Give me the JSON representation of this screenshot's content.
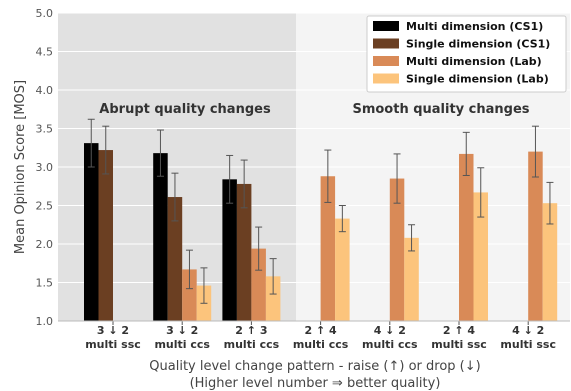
{
  "chart_data": {
    "type": "bar",
    "title": "",
    "ylabel": "Mean Opinion Score [MOS]",
    "xlabel_line1": "Quality level change pattern - raise (↑) or drop (↓)",
    "xlabel_line2": "(Higher level number ⇒ better quality)",
    "ylim": [
      1.0,
      5.0
    ],
    "yticks": [
      "1.0",
      "1.5",
      "2.0",
      "2.5",
      "3.0",
      "3.5",
      "4.0",
      "4.5",
      "5.0"
    ],
    "grid": true,
    "legend_position": "top-right",
    "categories": [
      {
        "line1": "3 ↓ 2",
        "line2": "multi ssc"
      },
      {
        "line1": "3 ↓ 2",
        "line2": "multi ccs"
      },
      {
        "line1": "2 ↑ 3",
        "line2": "multi ccs"
      },
      {
        "line1": "2 ↑ 4",
        "line2": "multi ccs"
      },
      {
        "line1": "4 ↓ 2",
        "line2": "multi ccs"
      },
      {
        "line1": "2 ↑ 4",
        "line2": "multi ssc"
      },
      {
        "line1": "4 ↓ 2",
        "line2": "multi ssc"
      }
    ],
    "series": [
      {
        "name": "Multi dimension (CS1)",
        "color": "#000000",
        "values": [
          3.31,
          3.18,
          2.84,
          null,
          null,
          null,
          null
        ],
        "err": [
          0.31,
          0.3,
          0.31,
          null,
          null,
          null,
          null
        ]
      },
      {
        "name": "Single dimension (CS1)",
        "color": "#6b3f22",
        "values": [
          3.22,
          2.61,
          2.78,
          null,
          null,
          null,
          null
        ],
        "err": [
          0.31,
          0.31,
          0.31,
          null,
          null,
          null,
          null
        ]
      },
      {
        "name": "Multi dimension (Lab)",
        "color": "#d98a57",
        "values": [
          null,
          1.67,
          1.94,
          2.88,
          2.85,
          3.17,
          3.2
        ],
        "err": [
          null,
          0.25,
          0.28,
          0.34,
          0.32,
          0.28,
          0.33
        ]
      },
      {
        "name": "Single dimension (Lab)",
        "color": "#fcc47c",
        "values": [
          null,
          1.46,
          1.58,
          2.33,
          2.08,
          2.67,
          2.53
        ],
        "err": [
          null,
          0.23,
          0.23,
          0.17,
          0.17,
          0.32,
          0.27
        ]
      }
    ],
    "annotations": {
      "abrupt": "Abrupt quality changes",
      "smooth": "Smooth quality changes"
    },
    "colors": {
      "abrupt_region": "#e1e1e1",
      "smooth_region": "#f4f4f4",
      "grid": "#ffffff",
      "error_bar": "#555555"
    }
  }
}
